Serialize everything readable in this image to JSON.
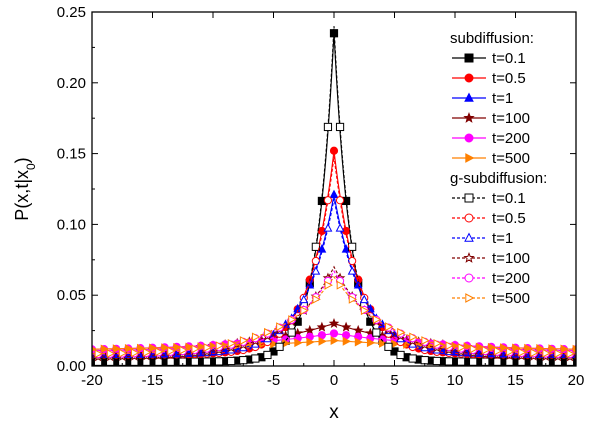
{
  "chart_data": {
    "type": "line",
    "xlabel": "x",
    "ylabel": "P(x,t|x0)",
    "xlim": [
      -20,
      20
    ],
    "ylim": [
      0,
      0.25
    ],
    "xticks": [
      -20,
      -15,
      -10,
      -5,
      0,
      5,
      10,
      15,
      20
    ],
    "yticks": [
      0.0,
      0.05,
      0.1,
      0.15,
      0.2,
      0.25
    ],
    "legend_position": "top-right",
    "legend_groups": [
      {
        "title": "subdiffusion:",
        "series": [
          {
            "name": "t=0.1",
            "color": "#000000",
            "marker": "square",
            "filled": true,
            "line": "solid",
            "peak": 0.235,
            "width": 1.4,
            "p_mid": 0.16,
            "p_x": 1.0,
            "tail": 0.003
          },
          {
            "name": "t=0.5",
            "color": "#ff0000",
            "marker": "circle",
            "filled": true,
            "line": "solid",
            "peak": 0.152,
            "width": 2.0,
            "p_mid": 0.11,
            "p_x": 1.0,
            "tail": 0.008
          },
          {
            "name": "t=1",
            "color": "#0000ff",
            "marker": "triangle-up",
            "filled": true,
            "line": "solid",
            "peak": 0.121,
            "width": 2.4,
            "p_mid": 0.1,
            "p_x": 1.0,
            "tail": 0.008
          },
          {
            "name": "t=100",
            "color": "#800000",
            "marker": "star",
            "filled": true,
            "line": "solid",
            "peak": 0.03,
            "width": 8.0,
            "tail": 0.008
          },
          {
            "name": "t=200",
            "color": "#ff00ff",
            "marker": "circle",
            "filled": true,
            "line": "solid",
            "peak": 0.023,
            "width": 10.0,
            "tail": 0.01
          },
          {
            "name": "t=500",
            "color": "#ff8000",
            "marker": "triangle-right",
            "filled": true,
            "line": "solid",
            "peak": 0.018,
            "width": 14.0,
            "tail": 0.01
          }
        ]
      },
      {
        "title": "g-subdiffusion:",
        "series": [
          {
            "name": "t=0.1",
            "color": "#000000",
            "marker": "square",
            "filled": false,
            "line": "dashed",
            "peak": 0.24,
            "width": 1.4,
            "p_mid": 0.16,
            "p_x": 1.0,
            "tail": 0.003
          },
          {
            "name": "t=0.5",
            "color": "#ff0000",
            "marker": "circle",
            "filled": false,
            "line": "dashed",
            "peak": 0.148,
            "width": 2.0,
            "p_mid": 0.11,
            "p_x": 1.0,
            "tail": 0.008
          },
          {
            "name": "t=1",
            "color": "#0000ff",
            "marker": "triangle-up",
            "filled": false,
            "line": "dashed",
            "peak": 0.118,
            "width": 2.4,
            "p_mid": 0.1,
            "p_x": 1.0,
            "tail": 0.008
          },
          {
            "name": "t=100",
            "color": "#800000",
            "marker": "star",
            "filled": false,
            "line": "dashed",
            "peak": 0.07,
            "width": 3.8,
            "tail": 0.006
          },
          {
            "name": "t=200",
            "color": "#ff00ff",
            "marker": "circle",
            "filled": false,
            "line": "dashed",
            "peak": 0.067,
            "width": 4.0,
            "tail": 0.008
          },
          {
            "name": "t=500",
            "color": "#ff8000",
            "marker": "triangle-right",
            "filled": false,
            "line": "dashed",
            "peak": 0.063,
            "width": 4.4,
            "tail": 0.008
          }
        ]
      }
    ]
  }
}
